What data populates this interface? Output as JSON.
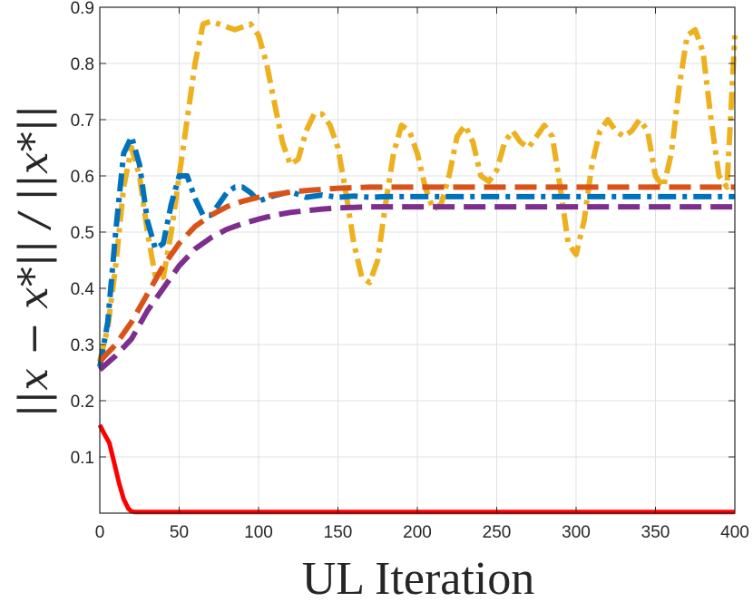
{
  "chart_data": {
    "type": "line",
    "title": "",
    "xlabel": "UL Iteration",
    "ylabel": "||x − x*|| / ||x*||",
    "xlim": [
      0,
      400
    ],
    "ylim": [
      0,
      0.9
    ],
    "xticks": [
      0,
      50,
      100,
      150,
      200,
      250,
      300,
      350,
      400
    ],
    "yticks": [
      0.1,
      0.2,
      0.3,
      0.4,
      0.5,
      0.6,
      0.7,
      0.8,
      0.9
    ],
    "grid": true,
    "legend": "none",
    "series": [
      {
        "color": "#EDB120",
        "style": "dashdot",
        "x": [
          0,
          5,
          10,
          15,
          20,
          25,
          30,
          35,
          40,
          45,
          50,
          55,
          60,
          65,
          70,
          75,
          80,
          85,
          90,
          95,
          100,
          105,
          110,
          115,
          120,
          125,
          130,
          135,
          140,
          145,
          150,
          155,
          160,
          165,
          170,
          175,
          180,
          185,
          190,
          195,
          200,
          205,
          210,
          215,
          220,
          225,
          230,
          235,
          240,
          245,
          250,
          255,
          260,
          265,
          270,
          275,
          280,
          285,
          290,
          295,
          300,
          305,
          310,
          315,
          320,
          325,
          330,
          335,
          340,
          345,
          350,
          355,
          360,
          365,
          370,
          375,
          380,
          385,
          390,
          395,
          400
        ],
        "y": [
          0.27,
          0.33,
          0.44,
          0.58,
          0.65,
          0.6,
          0.5,
          0.42,
          0.42,
          0.5,
          0.6,
          0.7,
          0.8,
          0.87,
          0.875,
          0.87,
          0.865,
          0.86,
          0.865,
          0.87,
          0.85,
          0.8,
          0.73,
          0.66,
          0.62,
          0.63,
          0.68,
          0.71,
          0.71,
          0.69,
          0.65,
          0.57,
          0.48,
          0.42,
          0.41,
          0.45,
          0.55,
          0.64,
          0.69,
          0.68,
          0.64,
          0.58,
          0.54,
          0.55,
          0.6,
          0.67,
          0.69,
          0.66,
          0.6,
          0.59,
          0.61,
          0.66,
          0.68,
          0.66,
          0.65,
          0.67,
          0.69,
          0.67,
          0.58,
          0.48,
          0.46,
          0.52,
          0.62,
          0.68,
          0.7,
          0.68,
          0.67,
          0.68,
          0.7,
          0.68,
          0.6,
          0.58,
          0.64,
          0.76,
          0.85,
          0.86,
          0.82,
          0.7,
          0.6,
          0.58,
          0.85
        ]
      },
      {
        "color": "#0072BD",
        "style": "dashdot",
        "x": [
          0,
          5,
          10,
          15,
          20,
          25,
          30,
          35,
          40,
          45,
          50,
          55,
          60,
          65,
          70,
          75,
          80,
          85,
          90,
          95,
          100,
          110,
          120,
          130,
          140,
          150,
          160,
          170,
          180,
          190,
          200,
          250,
          300,
          350,
          400
        ],
        "y": [
          0.26,
          0.34,
          0.5,
          0.64,
          0.67,
          0.62,
          0.52,
          0.47,
          0.48,
          0.55,
          0.6,
          0.6,
          0.56,
          0.53,
          0.53,
          0.55,
          0.57,
          0.58,
          0.58,
          0.57,
          0.555,
          0.565,
          0.572,
          0.562,
          0.566,
          0.562,
          0.564,
          0.562,
          0.563,
          0.563,
          0.563,
          0.563,
          0.563,
          0.563,
          0.563
        ]
      },
      {
        "color": "#D95319",
        "style": "dash",
        "x": [
          0,
          10,
          20,
          30,
          40,
          50,
          60,
          70,
          80,
          90,
          100,
          110,
          120,
          130,
          140,
          150,
          160,
          170,
          180,
          200,
          250,
          300,
          350,
          400
        ],
        "y": [
          0.27,
          0.3,
          0.34,
          0.39,
          0.44,
          0.48,
          0.51,
          0.53,
          0.545,
          0.555,
          0.562,
          0.567,
          0.571,
          0.574,
          0.576,
          0.578,
          0.579,
          0.58,
          0.58,
          0.58,
          0.58,
          0.58,
          0.58,
          0.58
        ]
      },
      {
        "color": "#7E2F8E",
        "style": "dash",
        "x": [
          0,
          10,
          20,
          30,
          40,
          50,
          60,
          70,
          80,
          90,
          100,
          110,
          120,
          130,
          140,
          150,
          160,
          170,
          180,
          200,
          250,
          300,
          350,
          400
        ],
        "y": [
          0.255,
          0.28,
          0.31,
          0.36,
          0.4,
          0.44,
          0.47,
          0.49,
          0.505,
          0.515,
          0.523,
          0.53,
          0.535,
          0.538,
          0.541,
          0.543,
          0.544,
          0.545,
          0.545,
          0.545,
          0.545,
          0.545,
          0.545,
          0.545
        ]
      },
      {
        "color": "#FF0000",
        "style": "solid",
        "x": [
          0,
          3,
          6,
          9,
          12,
          15,
          18,
          20,
          22,
          25,
          30,
          50,
          100,
          150,
          200,
          250,
          300,
          350,
          400
        ],
        "y": [
          0.157,
          0.14,
          0.125,
          0.09,
          0.055,
          0.025,
          0.008,
          0.003,
          0.002,
          0.002,
          0.002,
          0.002,
          0.002,
          0.002,
          0.002,
          0.002,
          0.002,
          0.002,
          0.002
        ]
      }
    ]
  }
}
